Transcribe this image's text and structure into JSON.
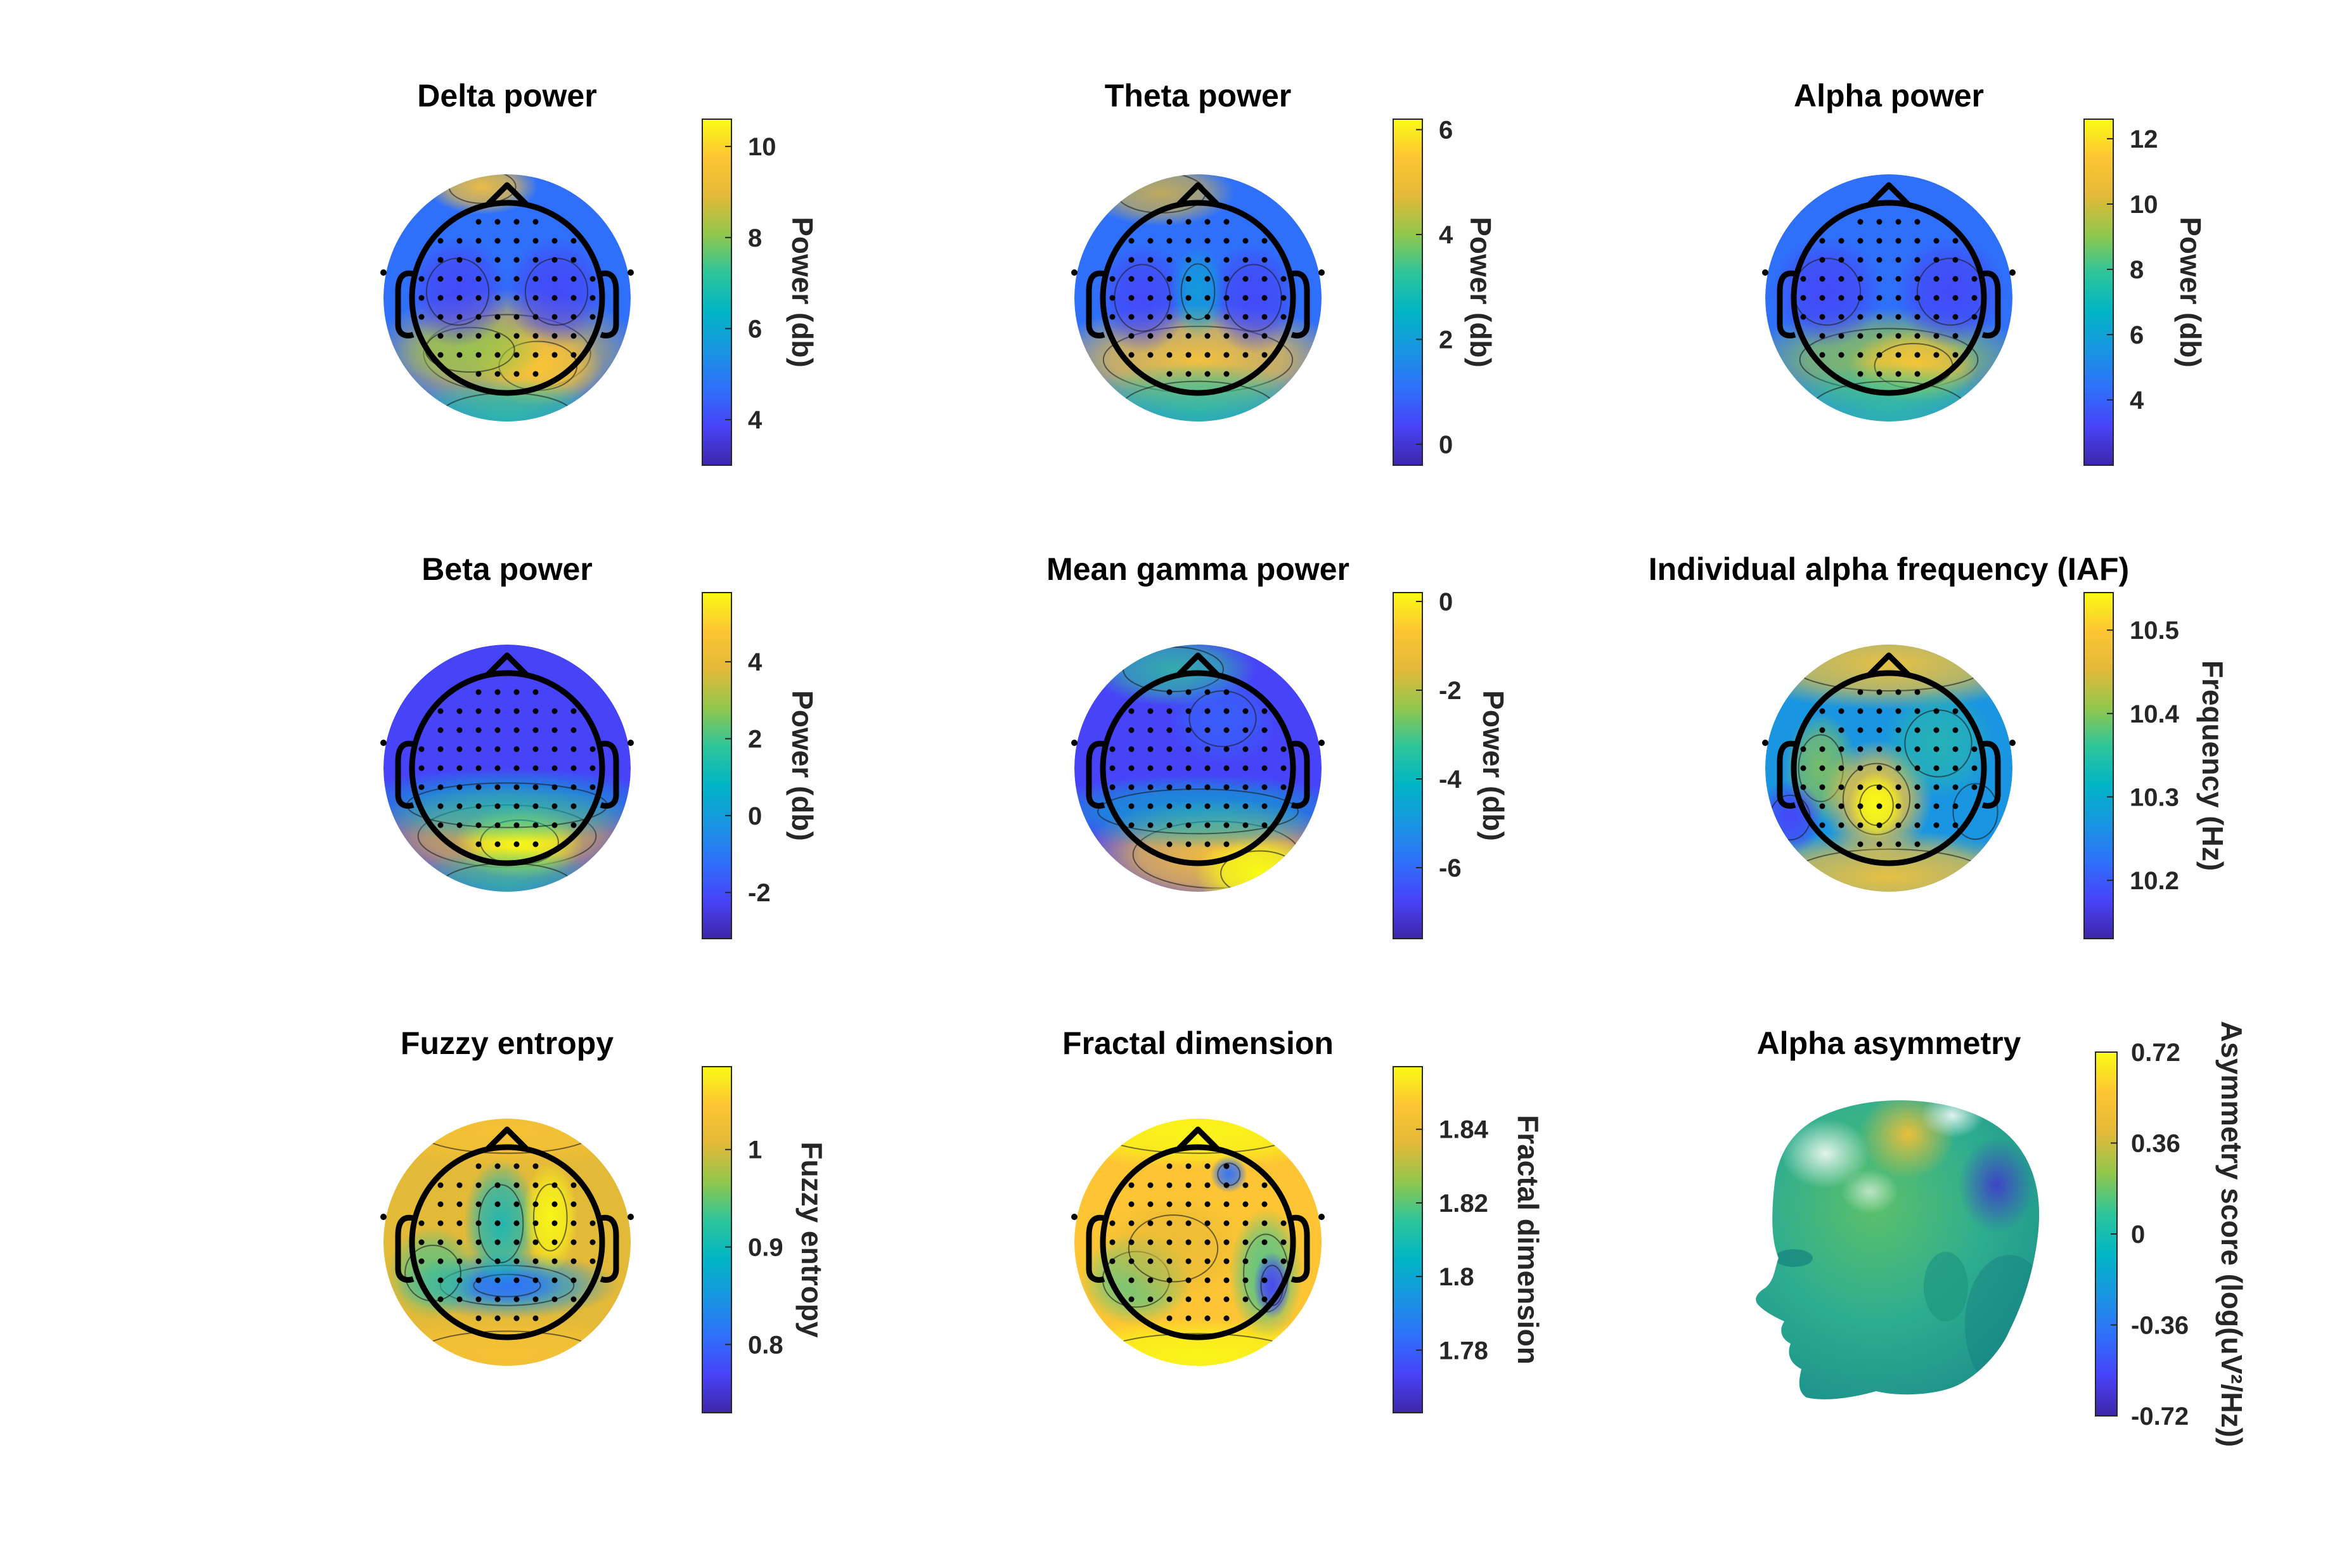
{
  "figure": {
    "colormap": [
      "#3e26a8",
      "#4743f8",
      "#2f70fa",
      "#1995e1",
      "#00b5c5",
      "#2ec59a",
      "#91c74c",
      "#e3b938",
      "#fdc533",
      "#f9fb15"
    ]
  },
  "chart_data": [
    {
      "type": "heatmap",
      "subtype": "scalp topography",
      "title": "Delta power",
      "colorbar": {
        "label": "Power (db)",
        "ticks": [
          "4",
          "6",
          "8",
          "10"
        ],
        "tick_values": [
          4,
          6,
          8,
          10
        ],
        "range": [
          3.0,
          10.6
        ]
      }
    },
    {
      "type": "heatmap",
      "subtype": "scalp topography",
      "title": "Theta power",
      "colorbar": {
        "label": "Power (db)",
        "ticks": [
          "0",
          "2",
          "4",
          "6"
        ],
        "tick_values": [
          0,
          2,
          4,
          6
        ],
        "range": [
          -0.4,
          6.2
        ]
      }
    },
    {
      "type": "heatmap",
      "subtype": "scalp topography",
      "title": "Alpha power",
      "colorbar": {
        "label": "Power (db)",
        "ticks": [
          "4",
          "6",
          "8",
          "10",
          "12"
        ],
        "tick_values": [
          4,
          6,
          8,
          10,
          12
        ],
        "range": [
          2.0,
          12.6
        ]
      }
    },
    {
      "type": "heatmap",
      "subtype": "scalp topography",
      "title": "Beta power",
      "colorbar": {
        "label": "Power (db)",
        "ticks": [
          "-2",
          "0",
          "2",
          "4"
        ],
        "tick_values": [
          -2,
          0,
          2,
          4
        ],
        "range": [
          -3.2,
          5.8
        ]
      }
    },
    {
      "type": "heatmap",
      "subtype": "scalp topography",
      "title": "Mean gamma power",
      "colorbar": {
        "label": "Power (db)",
        "ticks": [
          "-6",
          "-4",
          "-2",
          "0"
        ],
        "tick_values": [
          -6,
          -4,
          -2,
          0
        ],
        "range": [
          -7.6,
          0.2
        ]
      }
    },
    {
      "type": "heatmap",
      "subtype": "scalp topography",
      "title": "Individual alpha frequency (IAF)",
      "colorbar": {
        "label": "Frequency (Hz)",
        "ticks": [
          "10.2",
          "10.3",
          "10.4",
          "10.5"
        ],
        "tick_values": [
          10.2,
          10.3,
          10.4,
          10.5
        ],
        "range": [
          10.13,
          10.545
        ]
      }
    },
    {
      "type": "heatmap",
      "subtype": "scalp topography",
      "title": "Fuzzy entropy",
      "colorbar": {
        "label": "Fuzzy entropy",
        "ticks": [
          "0.8",
          "0.9",
          "1"
        ],
        "tick_values": [
          0.8,
          0.9,
          1.0
        ],
        "range": [
          0.73,
          1.085
        ]
      }
    },
    {
      "type": "heatmap",
      "subtype": "scalp topography",
      "title": "Fractal dimension",
      "colorbar": {
        "label": "Fractal dimension",
        "ticks": [
          "1.78",
          "1.8",
          "1.82",
          "1.84"
        ],
        "tick_values": [
          1.78,
          1.8,
          1.82,
          1.84
        ],
        "range": [
          1.763,
          1.857
        ]
      }
    },
    {
      "type": "heatmap",
      "subtype": "3D head surface",
      "title": "Alpha asymmetry",
      "colorbar": {
        "label": "Asymmetry score (log(uV²/Hz))",
        "ticks": [
          "-0.72",
          "-0.36",
          "0",
          "0.36",
          "0.72"
        ],
        "tick_values": [
          -0.72,
          -0.36,
          0,
          0.36,
          0.72
        ],
        "range": [
          -0.72,
          0.72
        ]
      }
    }
  ]
}
